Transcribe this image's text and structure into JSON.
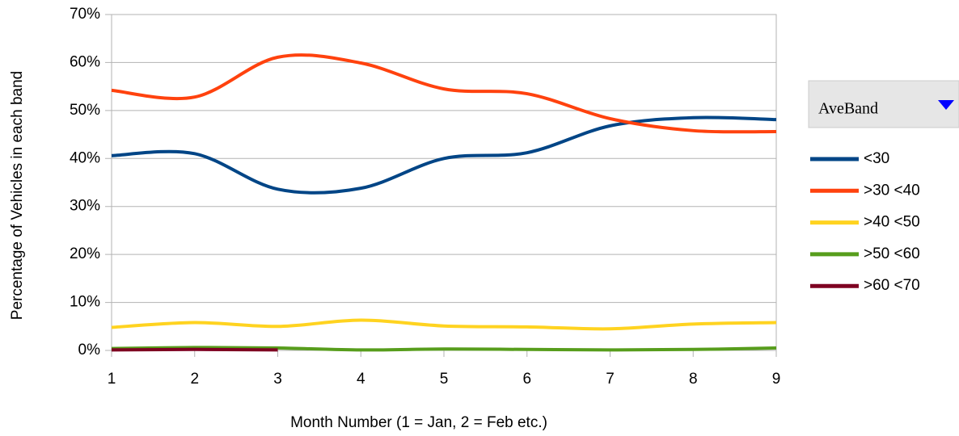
{
  "chart_data": {
    "type": "line",
    "xlabel": "Month Number (1 = Jan, 2 = Feb etc.)",
    "ylabel": "Percentage of Vehicles in each band",
    "legend_title": "AveBand",
    "x": [
      1,
      2,
      3,
      4,
      5,
      6,
      7,
      8,
      9
    ],
    "series": [
      {
        "name": "<30",
        "color": "#004586",
        "values": [
          40.6,
          41.0,
          33.6,
          33.8,
          40.0,
          41.2,
          46.8,
          48.5,
          48.1
        ]
      },
      {
        "name": ">30 <40",
        "color": "#ff420e",
        "values": [
          54.2,
          52.8,
          61.1,
          59.9,
          54.5,
          53.5,
          48.3,
          45.8,
          45.6
        ]
      },
      {
        "name": ">40 <50",
        "color": "#ffd320",
        "values": [
          4.8,
          5.8,
          5.0,
          6.3,
          5.1,
          4.9,
          4.5,
          5.5,
          5.8
        ]
      },
      {
        "name": ">50 <60",
        "color": "#579d1c",
        "values": [
          0.4,
          0.6,
          0.5,
          0.1,
          0.3,
          0.2,
          0.1,
          0.2,
          0.5
        ]
      },
      {
        "name": ">60 <70",
        "color": "#7e0021",
        "values": [
          0.1,
          0.2,
          0.1,
          null,
          null,
          null,
          null,
          null,
          null
        ]
      }
    ],
    "xlim": [
      1,
      9
    ],
    "xticks": [
      1,
      2,
      3,
      4,
      5,
      6,
      7,
      8,
      9
    ],
    "ylim": [
      0,
      70
    ],
    "yticks": [
      {
        "value": 0,
        "label": "0%"
      },
      {
        "value": 10,
        "label": "10%"
      },
      {
        "value": 20,
        "label": "20%"
      },
      {
        "value": 30,
        "label": "30%"
      },
      {
        "value": 40,
        "label": "40%"
      },
      {
        "value": 50,
        "label": "50%"
      },
      {
        "value": 60,
        "label": "60%"
      },
      {
        "value": 70,
        "label": "70%"
      }
    ],
    "grid": true,
    "smooth": true,
    "legend": "right"
  }
}
